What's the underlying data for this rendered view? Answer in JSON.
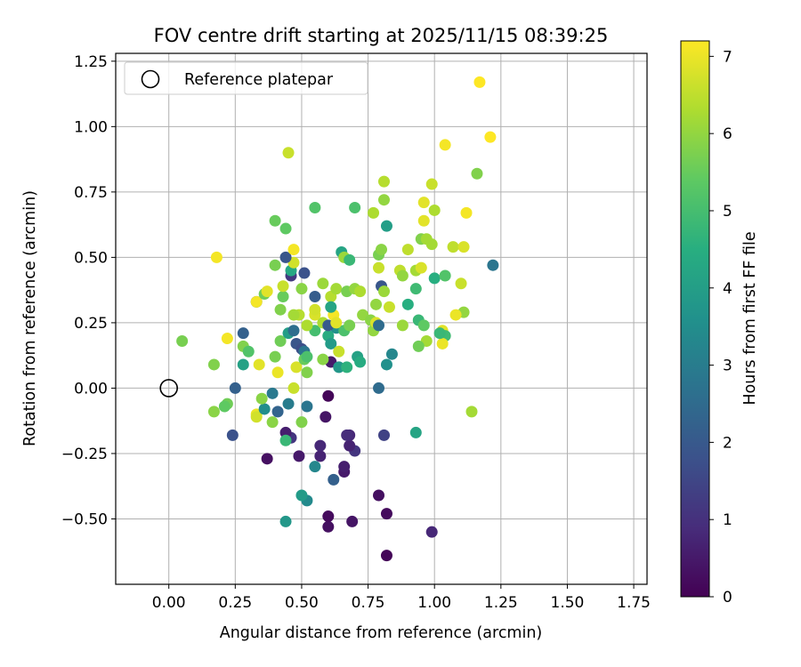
{
  "chart_data": {
    "type": "scatter",
    "title": "FOV centre drift starting at 2025/11/15 08:39:25",
    "xlabel": "Angular distance from reference (arcmin)",
    "ylabel": "Rotation from reference (arcmin)",
    "xlim": [
      -0.2,
      1.8
    ],
    "ylim": [
      -0.75,
      1.28
    ],
    "xticks": [
      0.0,
      0.25,
      0.5,
      0.75,
      1.0,
      1.25,
      1.5,
      1.75
    ],
    "xtick_labels": [
      "0.00",
      "0.25",
      "0.50",
      "0.75",
      "1.00",
      "1.25",
      "1.50",
      "1.75"
    ],
    "yticks": [
      -0.5,
      -0.25,
      0.0,
      0.25,
      0.5,
      0.75,
      1.0,
      1.25
    ],
    "ytick_labels": [
      "−0.50",
      "−0.25",
      "0.00",
      "0.25",
      "0.50",
      "0.75",
      "1.00",
      "1.25"
    ],
    "grid": true,
    "legend": {
      "placement": "top-left",
      "entries": [
        {
          "label": "Reference platepar",
          "marker": "open-circle",
          "color": "#000000"
        }
      ]
    },
    "reference_point": {
      "x": 0.0,
      "y": 0.0,
      "marker": "open-circle"
    },
    "colorbar": {
      "label": "Hours from first FF file",
      "range": [
        0,
        7.2
      ],
      "ticks": [
        0,
        1,
        2,
        3,
        4,
        5,
        6,
        7
      ],
      "tick_labels": [
        "0",
        "1",
        "2",
        "3",
        "4",
        "5",
        "6",
        "7"
      ],
      "colormap": "viridis"
    },
    "series": [
      {
        "color_by": "hours",
        "points": [
          [
            0.82,
            -0.64,
            0.1
          ],
          [
            0.99,
            -0.55,
            0.8
          ],
          [
            0.6,
            -0.53,
            0.3
          ],
          [
            0.69,
            -0.51,
            0.4
          ],
          [
            0.6,
            -0.49,
            0.2
          ],
          [
            0.82,
            -0.48,
            0.2
          ],
          [
            0.79,
            -0.41,
            0.3
          ],
          [
            0.44,
            -0.51,
            3.8
          ],
          [
            0.52,
            -0.43,
            3.4
          ],
          [
            0.5,
            -0.41,
            3.9
          ],
          [
            0.62,
            -0.35,
            2.2
          ],
          [
            0.66,
            -0.32,
            0.5
          ],
          [
            0.66,
            -0.3,
            0.6
          ],
          [
            0.55,
            -0.3,
            3.3
          ],
          [
            0.37,
            -0.27,
            0.3
          ],
          [
            0.49,
            -0.26,
            0.5
          ],
          [
            0.57,
            -0.26,
            0.7
          ],
          [
            0.7,
            -0.24,
            1.1
          ],
          [
            0.68,
            -0.22,
            0.7
          ],
          [
            0.57,
            -0.22,
            0.8
          ],
          [
            0.24,
            -0.18,
            1.8
          ],
          [
            0.46,
            -0.19,
            1.1
          ],
          [
            0.68,
            -0.18,
            0.8
          ],
          [
            0.67,
            -0.18,
            0.9
          ],
          [
            0.81,
            -0.18,
            1.4
          ],
          [
            0.44,
            -0.17,
            0.6
          ],
          [
            0.44,
            -0.2,
            4.8
          ],
          [
            0.93,
            -0.17,
            4.2
          ],
          [
            0.39,
            -0.13,
            5.9
          ],
          [
            0.5,
            -0.13,
            5.8
          ],
          [
            0.59,
            -0.11,
            0.4
          ],
          [
            0.17,
            -0.09,
            5.9
          ],
          [
            0.33,
            -0.1,
            7.0
          ],
          [
            0.33,
            -0.11,
            6.7
          ],
          [
            0.41,
            -0.09,
            2.3
          ],
          [
            0.36,
            -0.08,
            3.5
          ],
          [
            0.45,
            -0.06,
            3.0
          ],
          [
            0.52,
            -0.07,
            2.8
          ],
          [
            0.22,
            -0.06,
            5.6
          ],
          [
            0.21,
            -0.07,
            5.4
          ],
          [
            1.14,
            -0.09,
            6.2
          ],
          [
            0.39,
            -0.02,
            2.9
          ],
          [
            0.35,
            -0.04,
            5.9
          ],
          [
            0.47,
            -0.0,
            6.6
          ],
          [
            0.6,
            -0.03,
            0.1
          ],
          [
            0.79,
            -0.0,
            2.5
          ],
          [
            0.25,
            0.0,
            2.2
          ],
          [
            0.34,
            0.09,
            6.9
          ],
          [
            0.28,
            0.09,
            4.1
          ],
          [
            0.41,
            0.06,
            7.0
          ],
          [
            0.48,
            0.08,
            6.8
          ],
          [
            0.52,
            0.06,
            5.8
          ],
          [
            0.61,
            0.1,
            0.5
          ],
          [
            0.64,
            0.08,
            3.8
          ],
          [
            0.67,
            0.08,
            4.6
          ],
          [
            0.82,
            0.09,
            3.6
          ],
          [
            0.17,
            0.09,
            5.8
          ],
          [
            0.05,
            0.18,
            5.7
          ],
          [
            0.22,
            0.19,
            7.1
          ],
          [
            0.28,
            0.21,
            2.2
          ],
          [
            0.28,
            0.16,
            5.8
          ],
          [
            0.3,
            0.14,
            5.2
          ],
          [
            0.4,
            0.12,
            5.7
          ],
          [
            0.42,
            0.18,
            5.6
          ],
          [
            0.45,
            0.21,
            4.0
          ],
          [
            0.47,
            0.22,
            2.6
          ],
          [
            0.48,
            0.17,
            1.9
          ],
          [
            0.5,
            0.15,
            1.7
          ],
          [
            0.51,
            0.14,
            2.8
          ],
          [
            0.51,
            0.11,
            5.5
          ],
          [
            0.52,
            0.12,
            5.1
          ],
          [
            0.55,
            0.22,
            5.0
          ],
          [
            0.58,
            0.11,
            5.9
          ],
          [
            0.6,
            0.2,
            4.4
          ],
          [
            0.61,
            0.17,
            3.9
          ],
          [
            0.63,
            0.23,
            3.6
          ],
          [
            0.64,
            0.14,
            6.6
          ],
          [
            0.66,
            0.22,
            5.1
          ],
          [
            0.68,
            0.24,
            5.7
          ],
          [
            0.71,
            0.12,
            4.1
          ],
          [
            0.72,
            0.1,
            4.4
          ],
          [
            0.84,
            0.13,
            3.3
          ],
          [
            0.73,
            0.28,
            6.0
          ],
          [
            0.76,
            0.26,
            5.9
          ],
          [
            0.77,
            0.22,
            6.0
          ],
          [
            0.78,
            0.25,
            6.8
          ],
          [
            0.79,
            0.24,
            2.5
          ],
          [
            0.58,
            0.25,
            6.3
          ],
          [
            0.6,
            0.24,
            2.0
          ],
          [
            0.62,
            0.28,
            7.1
          ],
          [
            0.63,
            0.25,
            6.9
          ],
          [
            0.55,
            0.28,
            6.8
          ],
          [
            0.52,
            0.24,
            6.3
          ],
          [
            0.49,
            0.28,
            6.4
          ],
          [
            0.47,
            0.28,
            6.2
          ],
          [
            0.42,
            0.3,
            5.8
          ],
          [
            0.33,
            0.33,
            2.4
          ],
          [
            0.33,
            0.33,
            7.1
          ],
          [
            0.36,
            0.36,
            5.6
          ],
          [
            0.37,
            0.37,
            6.9
          ],
          [
            0.43,
            0.35,
            5.5
          ],
          [
            0.43,
            0.39,
            6.6
          ],
          [
            0.46,
            0.43,
            1.2
          ],
          [
            0.46,
            0.45,
            4.3
          ],
          [
            0.47,
            0.48,
            6.7
          ],
          [
            0.44,
            0.5,
            1.9
          ],
          [
            0.4,
            0.47,
            5.7
          ],
          [
            0.51,
            0.44,
            1.8
          ],
          [
            0.5,
            0.38,
            5.9
          ],
          [
            0.55,
            0.35,
            2.1
          ],
          [
            0.55,
            0.3,
            6.7
          ],
          [
            0.58,
            0.4,
            6.1
          ],
          [
            0.61,
            0.35,
            6.4
          ],
          [
            0.61,
            0.31,
            4.2
          ],
          [
            0.63,
            0.38,
            6.2
          ],
          [
            0.67,
            0.37,
            5.7
          ],
          [
            0.7,
            0.38,
            6.0
          ],
          [
            0.72,
            0.37,
            6.3
          ],
          [
            0.78,
            0.32,
            6.0
          ],
          [
            0.8,
            0.39,
            1.9
          ],
          [
            0.81,
            0.37,
            6.1
          ],
          [
            0.83,
            0.31,
            6.6
          ],
          [
            0.79,
            0.46,
            6.6
          ],
          [
            0.79,
            0.51,
            5.7
          ],
          [
            0.8,
            0.53,
            5.9
          ],
          [
            0.65,
            0.52,
            4.2
          ],
          [
            0.66,
            0.5,
            6.1
          ],
          [
            0.68,
            0.49,
            4.8
          ],
          [
            0.47,
            0.53,
            7.1
          ],
          [
            0.18,
            0.5,
            7.1
          ],
          [
            0.44,
            0.61,
            5.4
          ],
          [
            0.4,
            0.64,
            5.5
          ],
          [
            0.55,
            0.69,
            5.2
          ],
          [
            0.7,
            0.69,
            5.1
          ],
          [
            0.77,
            0.67,
            6.3
          ],
          [
            0.81,
            0.72,
            6.0
          ],
          [
            0.82,
            0.62,
            4.0
          ],
          [
            0.81,
            0.79,
            6.4
          ],
          [
            0.87,
            0.45,
            6.5
          ],
          [
            0.88,
            0.43,
            6.0
          ],
          [
            0.9,
            0.53,
            6.5
          ],
          [
            0.93,
            0.38,
            4.9
          ],
          [
            0.93,
            0.45,
            6.2
          ],
          [
            0.95,
            0.46,
            6.8
          ],
          [
            0.95,
            0.57,
            5.8
          ],
          [
            0.96,
            0.64,
            6.9
          ],
          [
            0.97,
            0.57,
            6.2
          ],
          [
            0.96,
            0.71,
            6.9
          ],
          [
            0.99,
            0.55,
            6.2
          ],
          [
            0.99,
            0.78,
            6.6
          ],
          [
            1.0,
            0.68,
            6.3
          ],
          [
            1.0,
            0.42,
            4.5
          ],
          [
            1.04,
            0.43,
            5.2
          ],
          [
            1.04,
            0.93,
            7.1
          ],
          [
            1.07,
            0.54,
            6.5
          ],
          [
            1.11,
            0.54,
            6.8
          ],
          [
            1.12,
            0.67,
            7.1
          ],
          [
            1.1,
            0.4,
            6.6
          ],
          [
            1.11,
            0.29,
            6.0
          ],
          [
            1.08,
            0.28,
            7.0
          ],
          [
            1.03,
            0.22,
            6.9
          ],
          [
            1.04,
            0.2,
            4.9
          ],
          [
            1.03,
            0.17,
            7.0
          ],
          [
            1.02,
            0.21,
            4.8
          ],
          [
            0.97,
            0.18,
            6.2
          ],
          [
            0.94,
            0.26,
            4.8
          ],
          [
            0.96,
            0.24,
            5.4
          ],
          [
            0.94,
            0.16,
            5.6
          ],
          [
            0.88,
            0.24,
            6.1
          ],
          [
            0.9,
            0.32,
            4.5
          ],
          [
            1.16,
            0.82,
            5.8
          ],
          [
            1.17,
            1.17,
            7.2
          ],
          [
            1.21,
            0.96,
            7.2
          ],
          [
            1.22,
            0.47,
            2.8
          ],
          [
            0.45,
            0.9,
            6.6
          ]
        ]
      }
    ]
  }
}
